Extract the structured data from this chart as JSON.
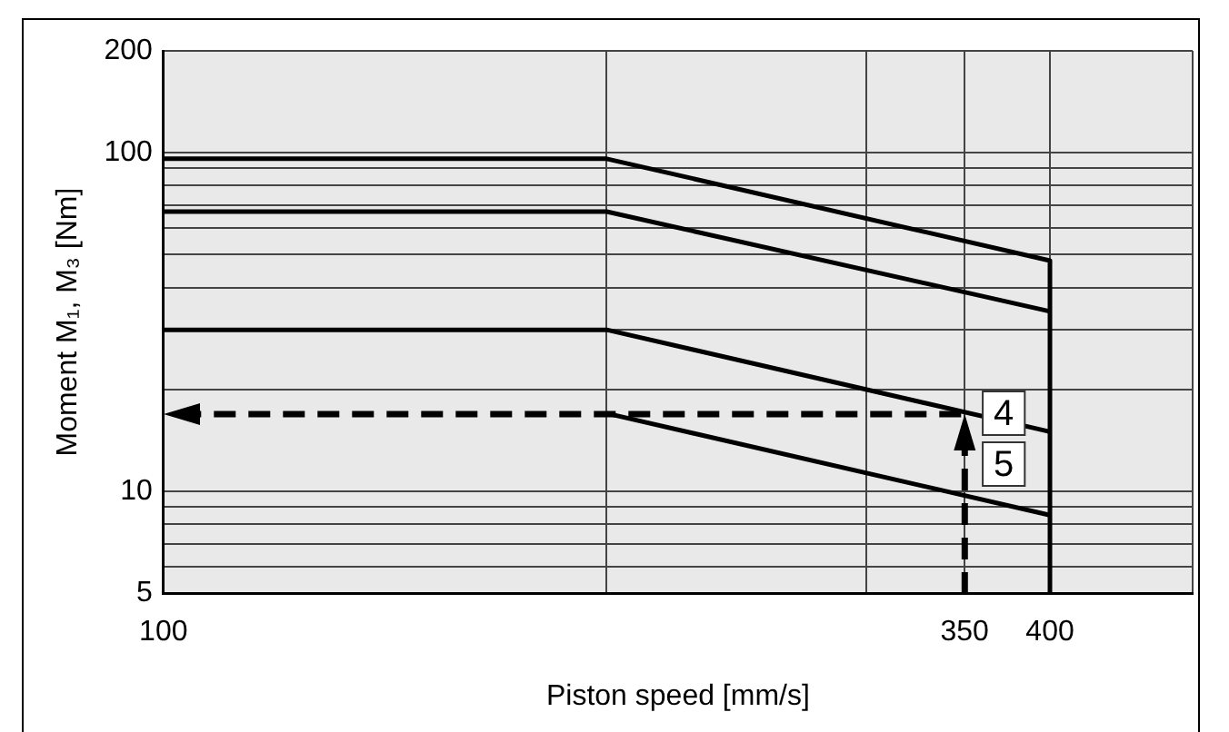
{
  "chart_data": {
    "type": "line",
    "xlabel": "Piston speed [mm/s]",
    "ylabel": "Moment M₁, M₃ [Nm]",
    "log": "xy",
    "grid": true,
    "legend": false,
    "marker": "none",
    "xlim": [
      100,
      500
    ],
    "xticks": [
      100,
      {
        "value": 200,
        "label": null
      },
      {
        "value": 300,
        "label": null
      },
      350,
      400,
      {
        "value": 500,
        "label": null
      }
    ],
    "ylim": [
      5,
      200
    ],
    "yticks": [
      5,
      {
        "value": 6,
        "label": null
      },
      {
        "value": 7,
        "label": null
      },
      {
        "value": 8,
        "label": null
      },
      {
        "value": 9,
        "label": null
      },
      10,
      {
        "value": 20,
        "label": null
      },
      {
        "value": 30,
        "label": null
      },
      {
        "value": 40,
        "label": null
      },
      {
        "value": 50,
        "label": null
      },
      {
        "value": 60,
        "label": null
      },
      {
        "value": 70,
        "label": null
      },
      {
        "value": 80,
        "label": null
      },
      {
        "value": 90,
        "label": null
      },
      100,
      200
    ],
    "series": [
      {
        "color": "#000000",
        "x": [
          100,
          200,
          400,
          400
        ],
        "values": [
          96,
          96,
          48,
          5
        ],
        "line_style": "solid"
      },
      {
        "color": "#000000",
        "x": [
          100,
          200,
          400
        ],
        "values": [
          67,
          67,
          34
        ],
        "line_style": "solid"
      },
      {
        "color": "#000000",
        "x": [
          100,
          200,
          400
        ],
        "values": [
          30,
          30,
          15
        ],
        "line_style": "solid"
      },
      {
        "color": "#000000",
        "x": [
          200,
          400
        ],
        "values": [
          17,
          8.5
        ],
        "line_style": "solid"
      }
    ],
    "annotations": [
      {
        "text": "4",
        "x": 350,
        "y": 17
      },
      {
        "text": "5",
        "x": 350,
        "y": 17
      }
    ]
  }
}
